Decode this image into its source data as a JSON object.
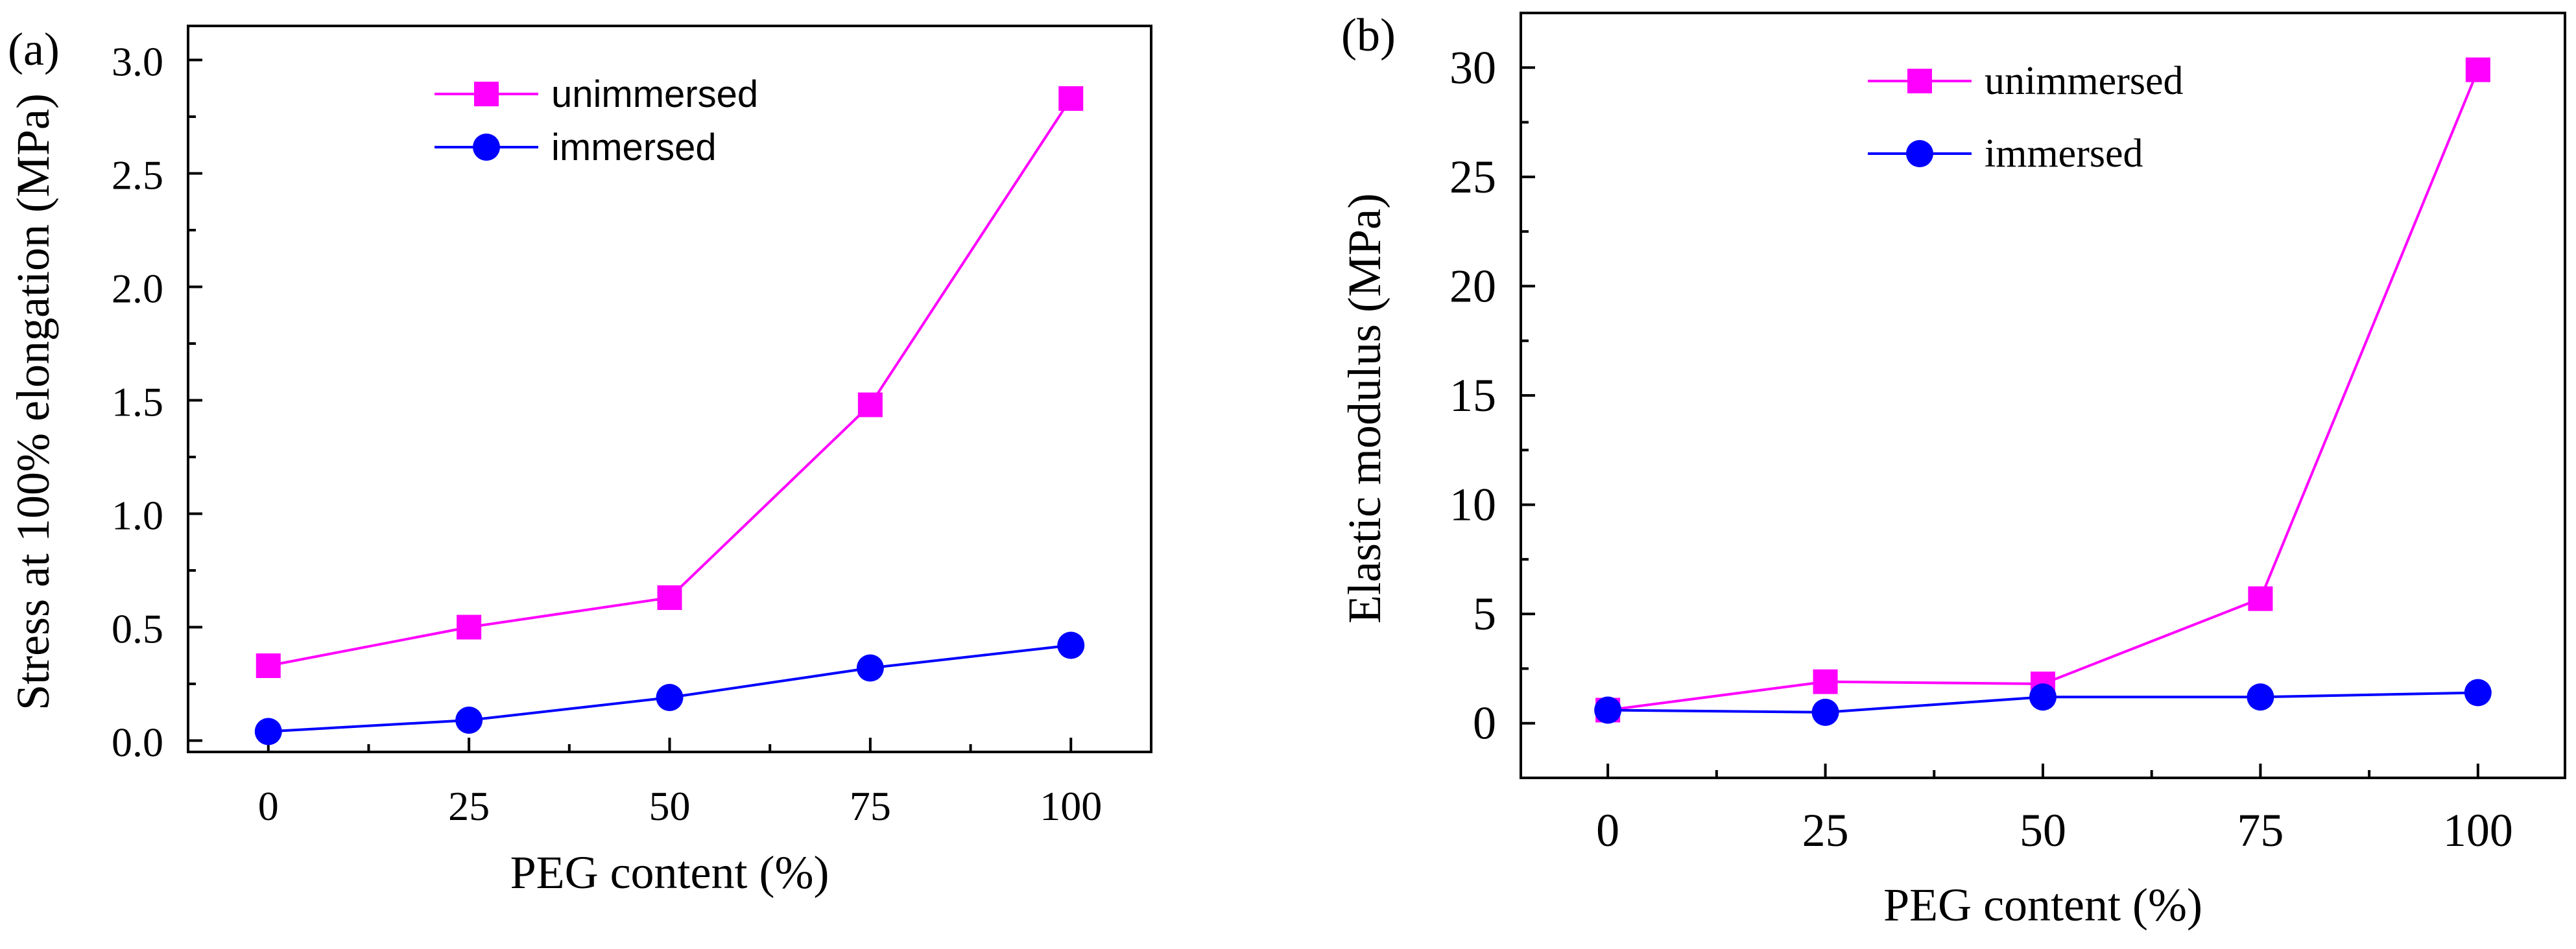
{
  "chart_data": [
    {
      "type": "line",
      "panel_label": "(a)",
      "title": "",
      "xlabel": "PEG content (%)",
      "ylabel": "Stress at 100% elongation (MPa)",
      "x": [
        0,
        25,
        50,
        75,
        100
      ],
      "x_tick_labels": [
        "0",
        "25",
        "50",
        "75",
        "100"
      ],
      "xlim": [
        -10,
        110
      ],
      "ylim": [
        -0.05,
        3.15
      ],
      "y_ticks": [
        0.0,
        0.5,
        1.0,
        1.5,
        2.0,
        2.5,
        3.0
      ],
      "y_tick_labels": [
        "0.0",
        "0.5",
        "1.0",
        "1.5",
        "2.0",
        "2.5",
        "3.0"
      ],
      "legend_position": "top-center",
      "series": [
        {
          "name": "unimmersed",
          "marker": "square",
          "color": "#ff00ff",
          "values": [
            0.33,
            0.5,
            0.63,
            1.48,
            2.83
          ]
        },
        {
          "name": "immersed",
          "marker": "circle",
          "color": "#0000ff",
          "values": [
            0.04,
            0.09,
            0.19,
            0.32,
            0.42
          ]
        }
      ]
    },
    {
      "type": "line",
      "panel_label": "(b)",
      "title": "",
      "xlabel": "PEG content (%)",
      "ylabel": "Elastic modulus (MPa)",
      "x": [
        0,
        25,
        50,
        75,
        100
      ],
      "x_tick_labels": [
        "0",
        "25",
        "50",
        "75",
        "100"
      ],
      "xlim": [
        -10,
        110
      ],
      "ylim": [
        -2.5,
        32.5
      ],
      "y_ticks": [
        0,
        5,
        10,
        15,
        20,
        25,
        30
      ],
      "y_tick_labels": [
        "0",
        "5",
        "10",
        "15",
        "20",
        "25",
        "30"
      ],
      "legend_position": "top-center",
      "series": [
        {
          "name": "unimmersed",
          "marker": "square",
          "color": "#ff00ff",
          "values": [
            0.6,
            1.9,
            1.8,
            5.7,
            29.9
          ]
        },
        {
          "name": "immersed",
          "marker": "circle",
          "color": "#0000ff",
          "values": [
            0.6,
            0.5,
            1.2,
            1.2,
            1.4
          ]
        }
      ]
    }
  ]
}
